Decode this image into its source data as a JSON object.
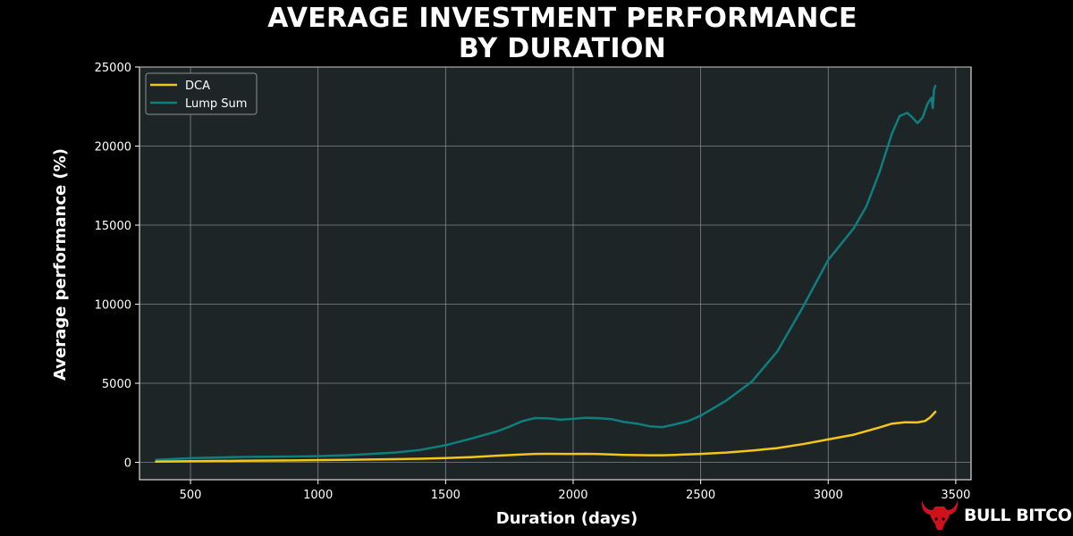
{
  "chart_data": {
    "type": "line",
    "title_line1": "AVERAGE INVESTMENT PERFORMANCE",
    "title_line2": "BY DURATION",
    "xlabel": "Duration (days)",
    "ylabel": "Average performance (%)",
    "xlim": [
      300,
      3560
    ],
    "ylim": [
      -1100,
      25000
    ],
    "xticks": [
      500,
      1000,
      1500,
      2000,
      2500,
      3000,
      3500
    ],
    "yticks": [
      0,
      5000,
      10000,
      15000,
      20000,
      25000
    ],
    "grid": true,
    "legend_position": "top-left",
    "series": [
      {
        "name": "DCA",
        "color": "#f5c518",
        "points": [
          [
            365,
            40
          ],
          [
            500,
            70
          ],
          [
            700,
            100
          ],
          [
            900,
            120
          ],
          [
            1100,
            160
          ],
          [
            1300,
            200
          ],
          [
            1400,
            230
          ],
          [
            1500,
            270
          ],
          [
            1600,
            330
          ],
          [
            1700,
            420
          ],
          [
            1800,
            500
          ],
          [
            1850,
            530
          ],
          [
            1900,
            540
          ],
          [
            2000,
            530
          ],
          [
            2050,
            540
          ],
          [
            2100,
            520
          ],
          [
            2200,
            470
          ],
          [
            2300,
            450
          ],
          [
            2350,
            450
          ],
          [
            2400,
            470
          ],
          [
            2500,
            530
          ],
          [
            2600,
            620
          ],
          [
            2700,
            740
          ],
          [
            2800,
            900
          ],
          [
            2900,
            1150
          ],
          [
            3000,
            1450
          ],
          [
            3100,
            1750
          ],
          [
            3200,
            2200
          ],
          [
            3250,
            2450
          ],
          [
            3300,
            2530
          ],
          [
            3350,
            2520
          ],
          [
            3380,
            2620
          ],
          [
            3400,
            2850
          ],
          [
            3420,
            3200
          ]
        ]
      },
      {
        "name": "Lump Sum",
        "color": "#0f7e7e",
        "points": [
          [
            365,
            160
          ],
          [
            500,
            260
          ],
          [
            700,
            340
          ],
          [
            900,
            370
          ],
          [
            1000,
            390
          ],
          [
            1100,
            440
          ],
          [
            1200,
            520
          ],
          [
            1300,
            620
          ],
          [
            1400,
            780
          ],
          [
            1500,
            1080
          ],
          [
            1600,
            1500
          ],
          [
            1700,
            1950
          ],
          [
            1750,
            2250
          ],
          [
            1800,
            2600
          ],
          [
            1850,
            2800
          ],
          [
            1900,
            2780
          ],
          [
            1950,
            2700
          ],
          [
            2000,
            2750
          ],
          [
            2050,
            2820
          ],
          [
            2100,
            2790
          ],
          [
            2150,
            2730
          ],
          [
            2200,
            2550
          ],
          [
            2250,
            2450
          ],
          [
            2300,
            2280
          ],
          [
            2350,
            2230
          ],
          [
            2400,
            2400
          ],
          [
            2450,
            2600
          ],
          [
            2500,
            2950
          ],
          [
            2600,
            3900
          ],
          [
            2700,
            5100
          ],
          [
            2800,
            7000
          ],
          [
            2900,
            9800
          ],
          [
            3000,
            12800
          ],
          [
            3050,
            13800
          ],
          [
            3100,
            14800
          ],
          [
            3150,
            16200
          ],
          [
            3200,
            18300
          ],
          [
            3250,
            20800
          ],
          [
            3280,
            21900
          ],
          [
            3310,
            22100
          ],
          [
            3330,
            21800
          ],
          [
            3350,
            21450
          ],
          [
            3370,
            21800
          ],
          [
            3390,
            22700
          ],
          [
            3405,
            23050
          ],
          [
            3410,
            22400
          ],
          [
            3415,
            23600
          ],
          [
            3420,
            23800
          ]
        ]
      }
    ]
  },
  "brand": {
    "name": "BULL BITCOIN",
    "primary_color": "#d0111b"
  },
  "colors": {
    "background": "#000000",
    "plot_background": "#1d2526",
    "grid": "#9fa6a6"
  }
}
